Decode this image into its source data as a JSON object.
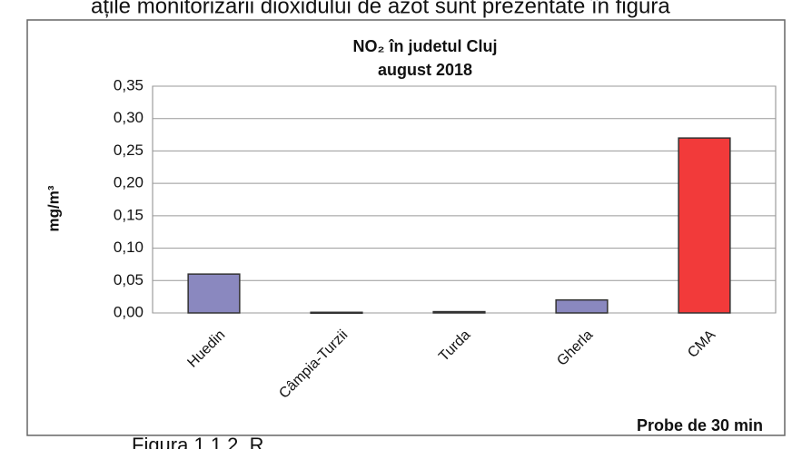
{
  "page_text": {
    "top": "ațile monitorizării dioxidului de azot sunt prezentate în figura",
    "bottom": "Figura 1.1.2. R"
  },
  "chart_data": {
    "type": "bar",
    "title": "NO₂ în judetul Cluj",
    "subtitle": "august 2018",
    "y_label": "mg/m³",
    "x_label": "Probe de 30 min",
    "categories": [
      "Huedin",
      "Câmpia-Turzii",
      "Turda",
      "Gherla",
      "CMA"
    ],
    "values": [
      0.06,
      0.001,
      0.002,
      0.02,
      0.27
    ],
    "colors": [
      "#8a88bf",
      "#8a88bf",
      "#8a88bf",
      "#8a88bf",
      "#f23a3a"
    ],
    "ylim": [
      0,
      0.35
    ],
    "yticks": [
      {
        "value": 0,
        "label": "0,00"
      },
      {
        "value": 0.05,
        "label": "0,05"
      },
      {
        "value": 0.1,
        "label": "0,10"
      },
      {
        "value": 0.15,
        "label": "0,15"
      },
      {
        "value": 0.2,
        "label": "0,20"
      },
      {
        "value": 0.25,
        "label": "0,25"
      },
      {
        "value": 0.3,
        "label": "0,30"
      },
      {
        "value": 0.35,
        "label": "0,35"
      }
    ],
    "grid": true
  }
}
